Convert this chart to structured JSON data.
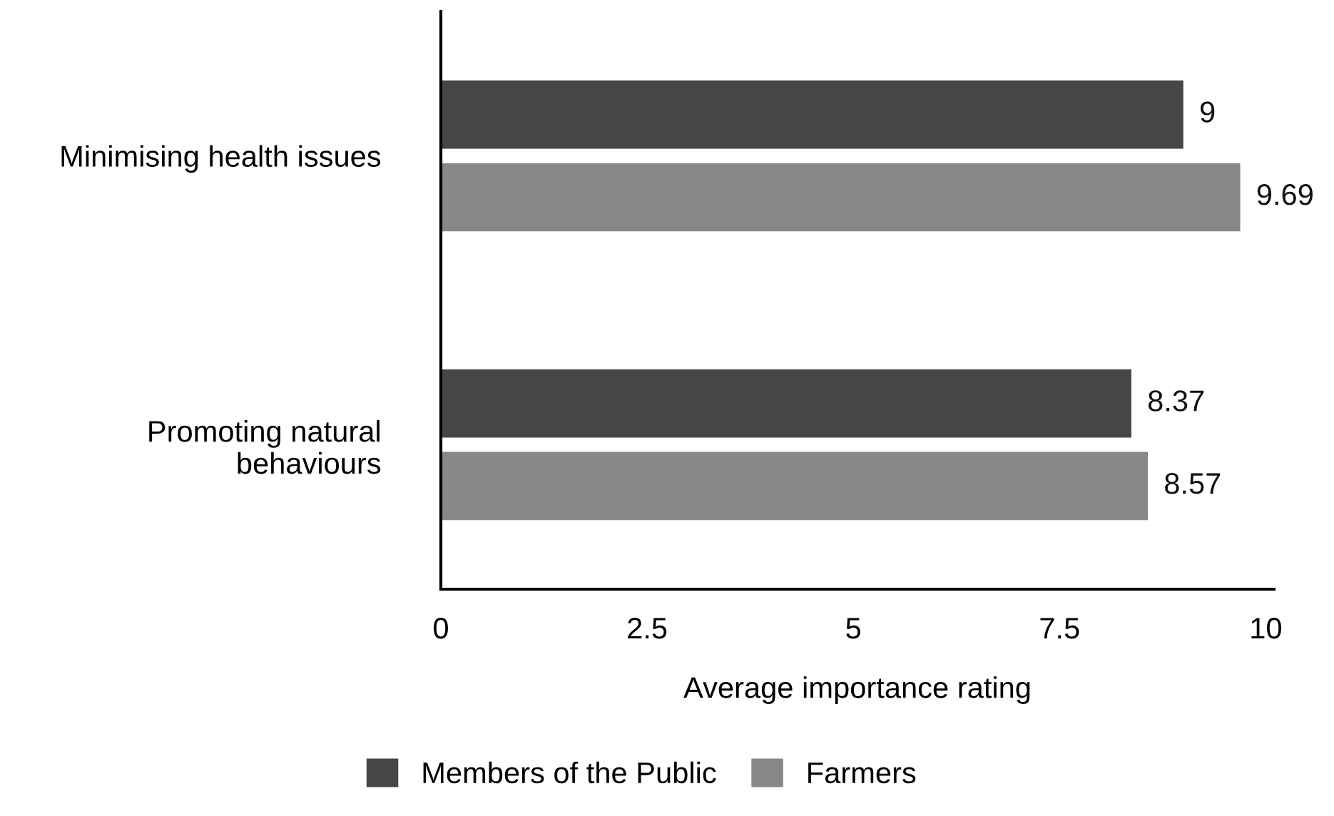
{
  "chart_data": {
    "type": "bar",
    "orientation": "horizontal",
    "xlabel": "Average importance rating",
    "categories": [
      "Minimising health issues",
      "Promoting natural\nbehaviours"
    ],
    "series": [
      {
        "name": "Members of the Public",
        "color": "#464646",
        "values": [
          9,
          8.37
        ]
      },
      {
        "name": "Farmers",
        "color": "#878787",
        "values": [
          9.69,
          8.57
        ]
      }
    ],
    "xlim": [
      0,
      10.1
    ],
    "xticks": [
      0,
      2.5,
      5,
      7.5,
      10
    ],
    "data_labels": true,
    "grid": false,
    "legend": "bottom"
  }
}
